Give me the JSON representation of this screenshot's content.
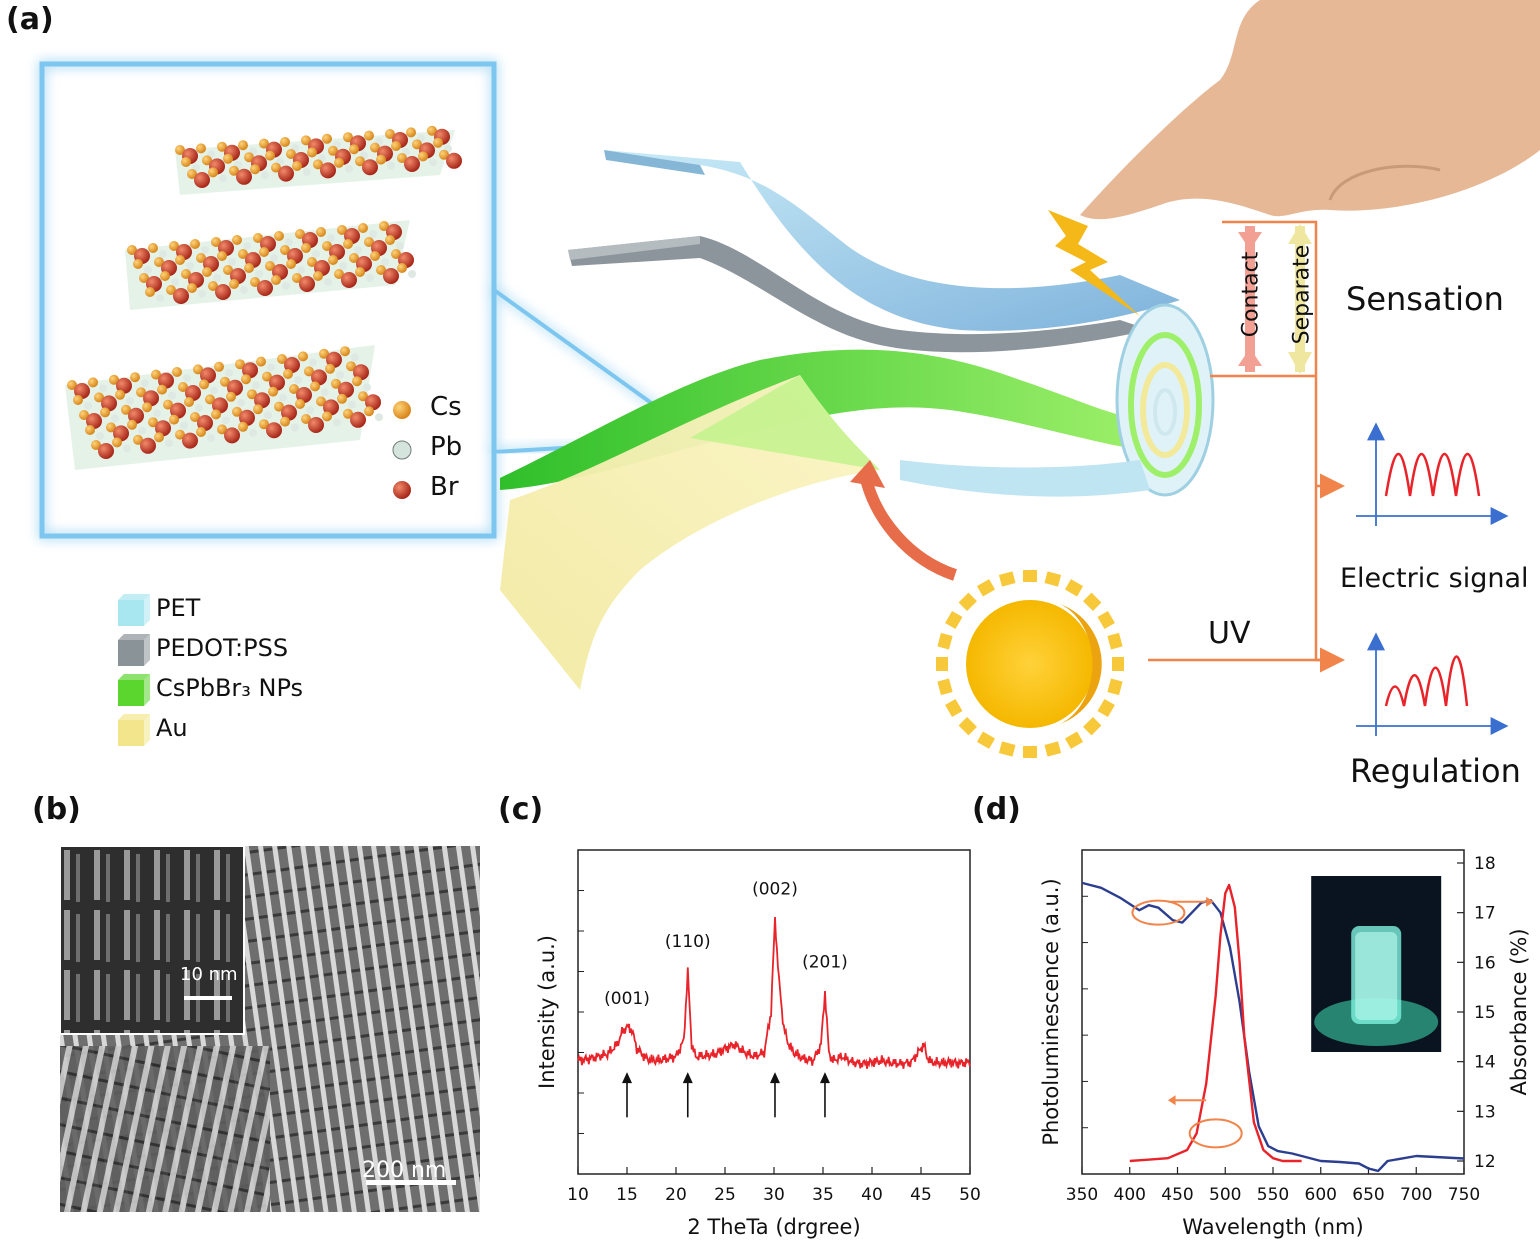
{
  "panels": {
    "a": {
      "label": "(a)",
      "atoms": [
        {
          "symbol": "Cs",
          "color": "#e8a530"
        },
        {
          "symbol": "Pb",
          "color": "#c8d8d0"
        },
        {
          "symbol": "Br",
          "color": "#c8402a"
        }
      ],
      "layers": [
        {
          "name": "PET",
          "color": "#a8e6f0"
        },
        {
          "name": "PEDOT:PSS",
          "color": "#8a9398"
        },
        {
          "name": "CsPbBr₃ NPs",
          "color": "#5bd62e"
        },
        {
          "name": "Au",
          "color": "#f3e58c"
        }
      ],
      "contact_label": "Contact",
      "separate_label": "Separate",
      "sensation_label": "Sensation",
      "electric_signal_label": "Electric signal",
      "uv_label": "UV",
      "regulation_label": "Regulation"
    },
    "b": {
      "label": "(b)",
      "inset_scale": "10 nm",
      "main_scale": "200 nm"
    },
    "c": {
      "label": "(c)"
    },
    "d": {
      "label": "(d)"
    }
  },
  "chart_data": [
    {
      "type": "line",
      "panel": "c",
      "xlabel": "2 TheTa (drgree)",
      "ylabel": "Intensity (a.u.)",
      "xlim": [
        10,
        50
      ],
      "xticks": [
        10,
        15,
        20,
        25,
        30,
        35,
        40,
        45,
        50
      ],
      "series": [
        {
          "color": "#e8232a",
          "x": [
            10,
            11,
            12,
            13,
            14,
            14.5,
            15,
            15.5,
            16,
            17,
            18,
            19,
            20,
            20.8,
            21.2,
            21.6,
            22,
            23,
            24,
            25,
            26,
            27,
            28,
            29,
            29.7,
            30.1,
            30.5,
            31,
            31.5,
            32,
            33,
            34,
            34.8,
            35.2,
            35.6,
            36,
            37,
            38,
            39,
            40,
            41,
            42,
            43,
            44,
            45,
            45.3,
            45.6,
            46,
            47,
            48,
            49,
            50
          ],
          "y": [
            0.2,
            0.22,
            0.25,
            0.28,
            0.4,
            0.55,
            0.62,
            0.58,
            0.35,
            0.22,
            0.2,
            0.22,
            0.25,
            0.45,
            1.3,
            0.4,
            0.25,
            0.26,
            0.28,
            0.35,
            0.4,
            0.3,
            0.25,
            0.3,
            0.8,
            1.95,
            1.2,
            0.6,
            0.4,
            0.3,
            0.22,
            0.2,
            0.4,
            1.05,
            0.3,
            0.2,
            0.25,
            0.18,
            0.16,
            0.18,
            0.2,
            0.17,
            0.16,
            0.18,
            0.35,
            0.4,
            0.25,
            0.18,
            0.17,
            0.18,
            0.17,
            0.18
          ]
        }
      ],
      "annotations": [
        "(001)",
        "(110)",
        "(002)",
        "(201)"
      ],
      "annotation_x": [
        15,
        21.2,
        30.1,
        35.2
      ]
    },
    {
      "type": "line",
      "panel": "d",
      "xlabel": "Wavelength (nm)",
      "ylabel": "Photoluminescence (a.u.)",
      "y2label": "Absorbance (%)",
      "xlim": [
        350,
        750
      ],
      "xticks": [
        350,
        400,
        450,
        500,
        550,
        600,
        650,
        700,
        750
      ],
      "y2lim": [
        12,
        18
      ],
      "y2ticks": [
        12,
        13,
        14,
        15,
        16,
        17,
        18
      ],
      "series": [
        {
          "color": "#2c3e8f",
          "axis": "right",
          "x": [
            350,
            370,
            390,
            410,
            420,
            430,
            445,
            455,
            465,
            475,
            485,
            495,
            505,
            515,
            525,
            535,
            545,
            555,
            570,
            600,
            620,
            640,
            650,
            660,
            670,
            700,
            750
          ],
          "y": [
            17.6,
            17.5,
            17.3,
            17.05,
            17.15,
            17.1,
            16.85,
            16.8,
            17.0,
            17.2,
            17.25,
            17.0,
            16.3,
            15.2,
            13.8,
            12.7,
            12.3,
            12.2,
            12.15,
            12.0,
            11.98,
            11.95,
            11.85,
            11.8,
            12.0,
            12.1,
            12.05
          ]
        },
        {
          "color": "#e8232a",
          "axis": "left",
          "x": [
            400,
            440,
            460,
            470,
            480,
            490,
            495,
            500,
            504,
            510,
            515,
            520,
            530,
            540,
            550,
            560,
            580
          ],
          "y": [
            0.0,
            0.01,
            0.04,
            0.1,
            0.28,
            0.6,
            0.82,
            0.97,
            1.0,
            0.92,
            0.72,
            0.45,
            0.14,
            0.04,
            0.01,
            0.0,
            0.0
          ]
        }
      ]
    }
  ]
}
